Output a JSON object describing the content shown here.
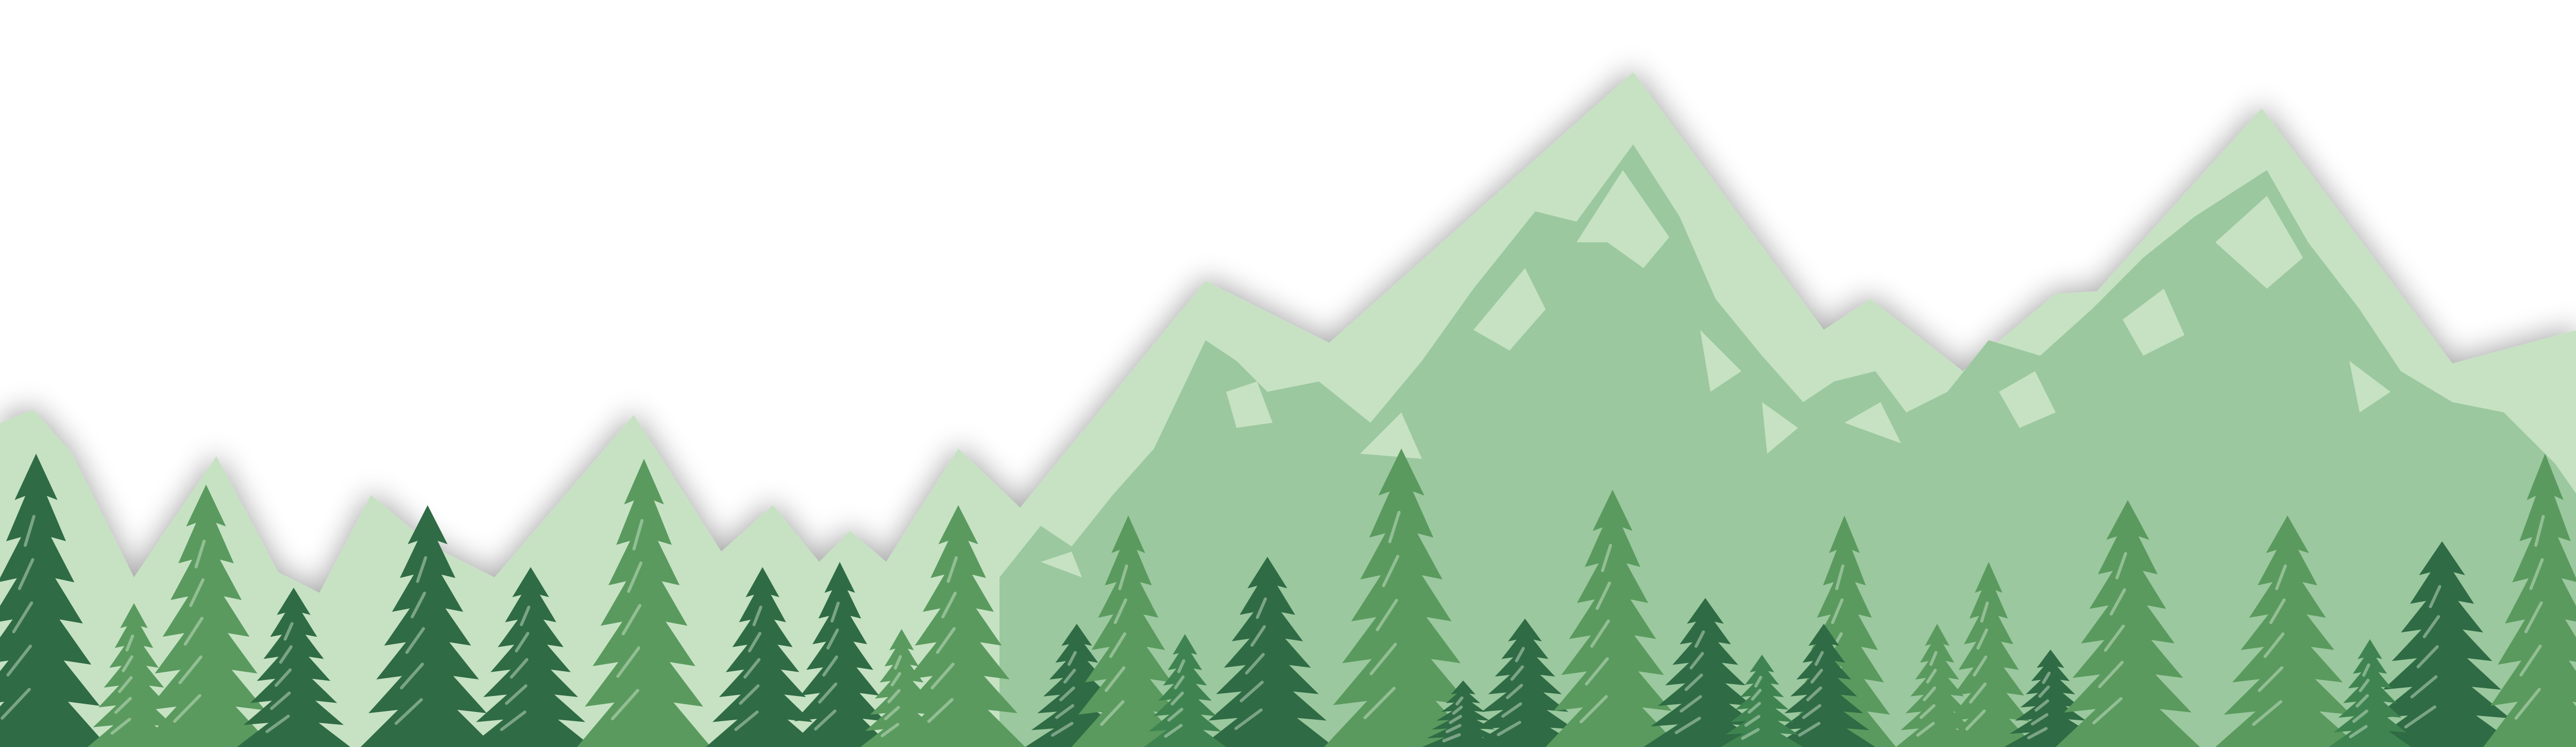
{
  "scene": {
    "description_label": "",
    "colors": {
      "background": "#ffffff",
      "mountain_light": "#c6e2c3",
      "mountain_mid": "#9bc89e",
      "mountain_snow": "#c6e2c3",
      "tree_dark": "#2f6b44",
      "tree_mid": "#3f8450",
      "tree_light": "#5a9a5e",
      "tree_highlight": "#d9ecd6",
      "shadow": "#000000"
    },
    "icons": [
      "mountain-range-icon",
      "pine-tree-icon"
    ],
    "tree_count": 31
  }
}
